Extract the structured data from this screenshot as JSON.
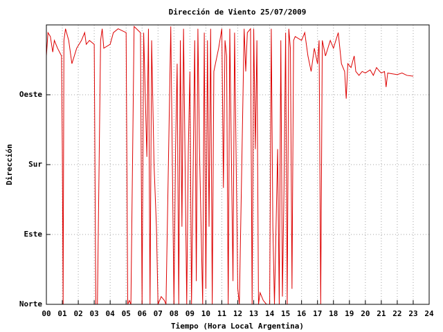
{
  "chart_data": {
    "type": "line",
    "title": "Dirección de Viento 25/07/2009",
    "x_label": "Tiempo (Hora Local Argentina)",
    "y_label": "Dirección",
    "color": "#dd0000",
    "grid": true,
    "xlim": [
      0,
      24
    ],
    "ylim": [
      0,
      360
    ],
    "xticks": [
      {
        "value": 0,
        "label": "00"
      },
      {
        "value": 1,
        "label": "01"
      },
      {
        "value": 2,
        "label": "02"
      },
      {
        "value": 3,
        "label": "03"
      },
      {
        "value": 4,
        "label": "04"
      },
      {
        "value": 5,
        "label": "05"
      },
      {
        "value": 6,
        "label": "06"
      },
      {
        "value": 7,
        "label": "07"
      },
      {
        "value": 8,
        "label": "08"
      },
      {
        "value": 9,
        "label": "09"
      },
      10,
      11,
      12,
      13,
      14,
      15,
      16,
      17,
      18,
      19,
      20,
      21,
      22,
      23,
      24
    ],
    "yticks": [
      {
        "value": 0,
        "label": "Norte"
      },
      {
        "value": 90,
        "label": "Este"
      },
      {
        "value": 180,
        "label": "Sur"
      },
      {
        "value": 270,
        "label": "Oeste"
      }
    ],
    "x": [
      0,
      0.1,
      0.25,
      0.4,
      0.5,
      0.7,
      0.95,
      1.0,
      1.05,
      1.1,
      1.2,
      1.4,
      1.6,
      1.9,
      2.2,
      2.4,
      2.5,
      2.7,
      3.0,
      3.1,
      3.2,
      3.3,
      3.4,
      3.5,
      3.6,
      4.0,
      4.2,
      4.5,
      5.0,
      5.1,
      5.2,
      5.3,
      5.5,
      5.9,
      6.0,
      6.1,
      6.3,
      6.4,
      6.5,
      6.6,
      6.75,
      6.9,
      7.0,
      7.2,
      7.4,
      7.5,
      7.8,
      8.0,
      8.1,
      8.2,
      8.3,
      8.4,
      8.5,
      8.6,
      8.8,
      8.9,
      9.0,
      9.1,
      9.3,
      9.4,
      9.5,
      9.6,
      9.8,
      9.9,
      10.0,
      10.1,
      10.2,
      10.3,
      10.4,
      10.5,
      10.8,
      11.0,
      11.1,
      11.2,
      11.3,
      11.4,
      11.5,
      11.7,
      11.8,
      12.0,
      12.1,
      12.4,
      12.5,
      12.6,
      12.8,
      12.9,
      13.0,
      13.1,
      13.2,
      13.3,
      13.4,
      13.6,
      13.8,
      14.0,
      14.1,
      14.2,
      14.3,
      14.5,
      14.6,
      14.7,
      14.8,
      14.9,
      15.0,
      15.1,
      15.2,
      15.3,
      15.4,
      15.5,
      15.6,
      16.0,
      16.2,
      16.4,
      16.6,
      16.8,
      17.0,
      17.1,
      17.2,
      17.3,
      17.5,
      17.8,
      18.0,
      18.3,
      18.5,
      18.7,
      18.8,
      18.9,
      19.1,
      19.3,
      19.4,
      19.6,
      19.8,
      20.0,
      20.3,
      20.5,
      20.7,
      20.9,
      21.0,
      21.2,
      21.3,
      21.4,
      21.7,
      22.0,
      22.3,
      22.6,
      23.0
    ],
    "values": [
      320,
      350,
      345,
      325,
      340,
      330,
      320,
      200,
      0,
      340,
      355,
      340,
      310,
      330,
      340,
      350,
      335,
      340,
      335,
      0,
      0,
      170,
      340,
      355,
      330,
      335,
      350,
      355,
      350,
      0,
      5,
      0,
      358,
      350,
      0,
      350,
      190,
      355,
      0,
      340,
      180,
      100,
      0,
      10,
      5,
      0,
      358,
      0,
      200,
      310,
      0,
      340,
      100,
      355,
      0,
      200,
      300,
      0,
      340,
      30,
      355,
      200,
      0,
      350,
      20,
      340,
      100,
      355,
      0,
      300,
      330,
      355,
      150,
      340,
      320,
      0,
      355,
      30,
      350,
      20,
      0,
      355,
      300,
      350,
      355,
      0,
      355,
      200,
      340,
      0,
      15,
      5,
      0,
      0,
      355,
      100,
      0,
      200,
      0,
      340,
      10,
      150,
      350,
      0,
      355,
      330,
      20,
      340,
      345,
      340,
      350,
      320,
      300,
      330,
      310,
      340,
      0,
      340,
      320,
      340,
      330,
      350,
      310,
      300,
      265,
      310,
      305,
      320,
      300,
      295,
      300,
      298,
      302,
      295,
      305,
      300,
      298,
      300,
      280,
      298,
      297,
      296,
      298,
      295,
      294
    ]
  }
}
